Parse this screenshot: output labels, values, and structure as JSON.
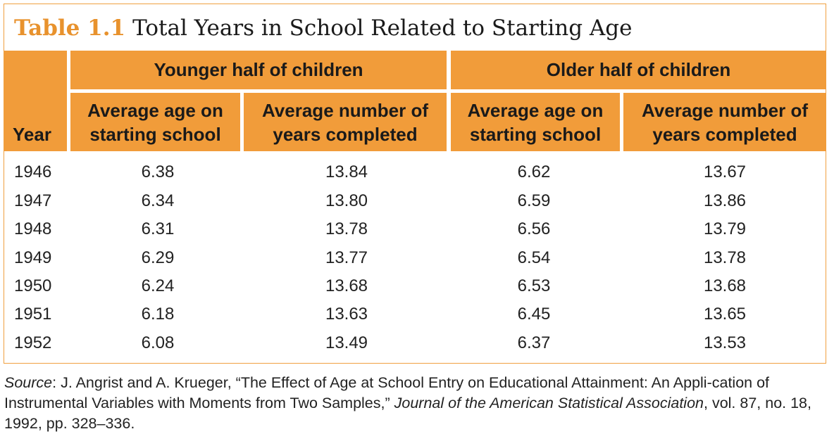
{
  "table": {
    "number": "Table 1.1",
    "title": "Total Years in School Related to Starting Age",
    "year_header": "Year",
    "group_younger": "Younger half of children",
    "group_older": "Older half of children",
    "sub_headers": [
      [
        "Average age on",
        "starting school"
      ],
      [
        "Average number of",
        "years completed"
      ],
      [
        "Average age on",
        "starting school"
      ],
      [
        "Average number of",
        "years completed"
      ]
    ],
    "rows": [
      [
        "1946",
        "6.38",
        "13.84",
        "6.62",
        "13.67"
      ],
      [
        "1947",
        "6.34",
        "13.80",
        "6.59",
        "13.86"
      ],
      [
        "1948",
        "6.31",
        "13.78",
        "6.56",
        "13.79"
      ],
      [
        "1949",
        "6.29",
        "13.77",
        "6.54",
        "13.78"
      ],
      [
        "1950",
        "6.24",
        "13.68",
        "6.53",
        "13.68"
      ],
      [
        "1951",
        "6.18",
        "13.63",
        "6.45",
        "13.65"
      ],
      [
        "1952",
        "6.08",
        "13.49",
        "6.37",
        "13.53"
      ]
    ]
  },
  "source": {
    "label": "Source",
    "text1": ": J. Angrist and A. Krueger, “The Effect of Age at School Entry on Educational Attainment: An Appli-cation of Instrumental Variables with Moments from Two Samples,” ",
    "journal": "Journal of the American Statistical Association",
    "text2": ", vol. 87, no. 18, 1992, pp. 328–336."
  },
  "colors": {
    "header_fill": "#f19c3a",
    "title_number": "#e8922d",
    "border": "#f0a040"
  }
}
